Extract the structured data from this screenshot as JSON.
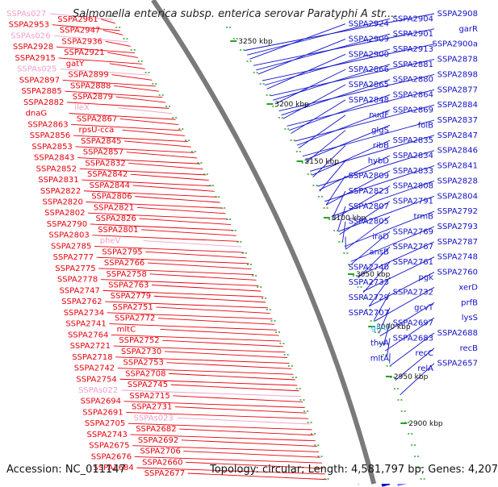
{
  "title": "Salmonella enterica subsp. enterica serovar Paratyphi A str....",
  "accession": "Accession: NC_011147",
  "topology": "Topology: circular; Length: 4,581,797 bp; Genes: 4,207",
  "colors": {
    "left_gene": "#e8000b",
    "right_gene": "#1010c8",
    "rna_left": "#f0a0c8",
    "rna_right": "#30b0e0",
    "backbone": "#7a7a7a",
    "tick": "#2aa02a"
  },
  "position_labels": [
    {
      "text": "3250 kbp",
      "kbp": 3250
    },
    {
      "text": "3200 kbp",
      "kbp": 3200
    },
    {
      "text": "3150 kbp",
      "kbp": 3150
    },
    {
      "text": "3100 kbp",
      "kbp": 3100
    },
    {
      "text": "3050 kbp",
      "kbp": 3050
    },
    {
      "text": "3000 kbp",
      "kbp": 3000
    },
    {
      "text": "2950 kbp",
      "kbp": 2950
    },
    {
      "text": "2900 kbp",
      "kbp": 2900
    }
  ],
  "left_labels": [
    {
      "text": "SSPAs027",
      "type": "rna"
    },
    {
      "text": "SSPA2961"
    },
    {
      "text": "SSPA2953"
    },
    {
      "text": "SSPA2947"
    },
    {
      "text": "SSPAs026",
      "type": "rna"
    },
    {
      "text": "SSPA2936"
    },
    {
      "text": "SSPA2928"
    },
    {
      "text": "SSPA2921"
    },
    {
      "text": "SSPA2915"
    },
    {
      "text": "gatY"
    },
    {
      "text": "SSPAs025",
      "type": "rna"
    },
    {
      "text": "SSPA2899"
    },
    {
      "text": "SSPA2897"
    },
    {
      "text": "SSPA2888"
    },
    {
      "text": "SSPA2885"
    },
    {
      "text": "SSPA2879"
    },
    {
      "text": "SSPA2882"
    },
    {
      "text": "ileX",
      "type": "rna"
    },
    {
      "text": "dnaG"
    },
    {
      "text": "SSPA2867"
    },
    {
      "text": "SSPA2863"
    },
    {
      "text": "rpsU-cca"
    },
    {
      "text": "SSPA2856"
    },
    {
      "text": "SSPA2845"
    },
    {
      "text": "SSPA2853"
    },
    {
      "text": "SSPA2857"
    },
    {
      "text": "SSPA2843"
    },
    {
      "text": "SSPA2832"
    },
    {
      "text": "SSPA2852"
    },
    {
      "text": "SSPA2842"
    },
    {
      "text": "SSPA2831"
    },
    {
      "text": "SSPA2844"
    },
    {
      "text": "SSPA2822"
    },
    {
      "text": "SSPA2806"
    },
    {
      "text": "SSPA2820"
    },
    {
      "text": "SSPA2821"
    },
    {
      "text": "SSPA2802"
    },
    {
      "text": "SSPA2826"
    },
    {
      "text": "SSPA2790"
    },
    {
      "text": "SSPA2801"
    },
    {
      "text": "SSPA2803"
    },
    {
      "text": "pheV",
      "type": "rna"
    },
    {
      "text": "SSPA2785"
    },
    {
      "text": "SSPA2795"
    },
    {
      "text": "SSPA2777"
    },
    {
      "text": "SSPA2766"
    },
    {
      "text": "SSPA2775"
    },
    {
      "text": "SSPA2758"
    },
    {
      "text": "SSPA2778"
    },
    {
      "text": "SSPA2763"
    },
    {
      "text": "SSPA2747"
    },
    {
      "text": "SSPA2779"
    },
    {
      "text": "SSPA2762"
    },
    {
      "text": "SSPA2751"
    },
    {
      "text": "SSPA2734"
    },
    {
      "text": "SSPA2772"
    },
    {
      "text": "SSPA2741"
    },
    {
      "text": "mltC"
    },
    {
      "text": "SSPA2764"
    },
    {
      "text": "SSPA2752"
    },
    {
      "text": "SSPA2721"
    },
    {
      "text": "SSPA2730"
    },
    {
      "text": "SSPA2718"
    },
    {
      "text": "SSPA2753"
    },
    {
      "text": "SSPA2742"
    },
    {
      "text": "SSPA2708"
    },
    {
      "text": "SSPA2754"
    },
    {
      "text": "SSPA2745"
    },
    {
      "text": "SSPAs022",
      "type": "rna"
    },
    {
      "text": "SSPA2715"
    },
    {
      "text": "SSPA2694"
    },
    {
      "text": "SSPA2731"
    },
    {
      "text": "SSPA2691"
    },
    {
      "text": "SSPAs023",
      "type": "rna"
    },
    {
      "text": "SSPA2705"
    },
    {
      "text": "SSPA2682"
    },
    {
      "text": "SSPA2743"
    },
    {
      "text": "SSPA2692"
    },
    {
      "text": "SSPA2675"
    },
    {
      "text": "SSPA2706"
    },
    {
      "text": "SSPA2676"
    },
    {
      "text": "SSPA2660"
    },
    {
      "text": "SSPA2684"
    },
    {
      "text": "SSPA2677"
    }
  ],
  "right_labels": [
    {
      "text": "SSPA2908"
    },
    {
      "text": "SSPA2904"
    },
    {
      "text": "SSPA2924"
    },
    {
      "text": "garR"
    },
    {
      "text": "SSPA2901"
    },
    {
      "text": "SSPA2909"
    },
    {
      "text": "SSPA2900a"
    },
    {
      "text": "SSPA2913"
    },
    {
      "text": "SSPA2900"
    },
    {
      "text": "SSPA2878"
    },
    {
      "text": "SSPA2881"
    },
    {
      "text": "SSPA2866"
    },
    {
      "text": "SSPA2898"
    },
    {
      "text": "SSPA2880"
    },
    {
      "text": "SSPA2865"
    },
    {
      "text": "SSPA2877"
    },
    {
      "text": "SSPA2864"
    },
    {
      "text": "SSPA2848"
    },
    {
      "text": "SSPA2884"
    },
    {
      "text": "SSPA2869"
    },
    {
      "text": "nudF"
    },
    {
      "text": "SSPA2837"
    },
    {
      "text": "folB"
    },
    {
      "text": "glgS"
    },
    {
      "text": "SSPA2847"
    },
    {
      "text": "SSPA2835"
    },
    {
      "text": "ribB"
    },
    {
      "text": "SSPA2846"
    },
    {
      "text": "SSPA2834"
    },
    {
      "text": "hybD"
    },
    {
      "text": "SSPA2841"
    },
    {
      "text": "SSPA2833"
    },
    {
      "text": "SSPA2809"
    },
    {
      "text": "SSPA2828"
    },
    {
      "text": "SSPA2808"
    },
    {
      "text": "SSPA2823"
    },
    {
      "text": "SSPA2804"
    },
    {
      "text": "SSPA2791"
    },
    {
      "text": "SSPA2807"
    },
    {
      "text": "SSPA2792"
    },
    {
      "text": "trmB"
    },
    {
      "text": "SSPA2805"
    },
    {
      "text": "SSPA2793"
    },
    {
      "text": "SSPA2769"
    },
    {
      "text": "iraD"
    },
    {
      "text": "SSPA2787"
    },
    {
      "text": "SSPA2767"
    },
    {
      "text": "ansB"
    },
    {
      "text": "SSPA2748"
    },
    {
      "text": "SSPA2761"
    },
    {
      "text": "SSPA2740"
    },
    {
      "text": "SSPA2760"
    },
    {
      "text": "pgk"
    },
    {
      "text": "SSPA2733"
    },
    {
      "text": "xerD"
    },
    {
      "text": "SSPA2732"
    },
    {
      "text": "SSPA2729"
    },
    {
      "text": "prfB"
    },
    {
      "text": "gcvT"
    },
    {
      "text": "SSPA2707"
    },
    {
      "text": "lysS"
    },
    {
      "text": "SSPA2697"
    },
    {
      "text": "glyU",
      "type": "rna"
    },
    {
      "text": "SSPA2688"
    },
    {
      "text": "SSPA2683"
    },
    {
      "text": "thyA"
    },
    {
      "text": "recB"
    },
    {
      "text": "recC"
    },
    {
      "text": "mltA"
    },
    {
      "text": "SSPA2657"
    },
    {
      "text": "relA"
    }
  ]
}
